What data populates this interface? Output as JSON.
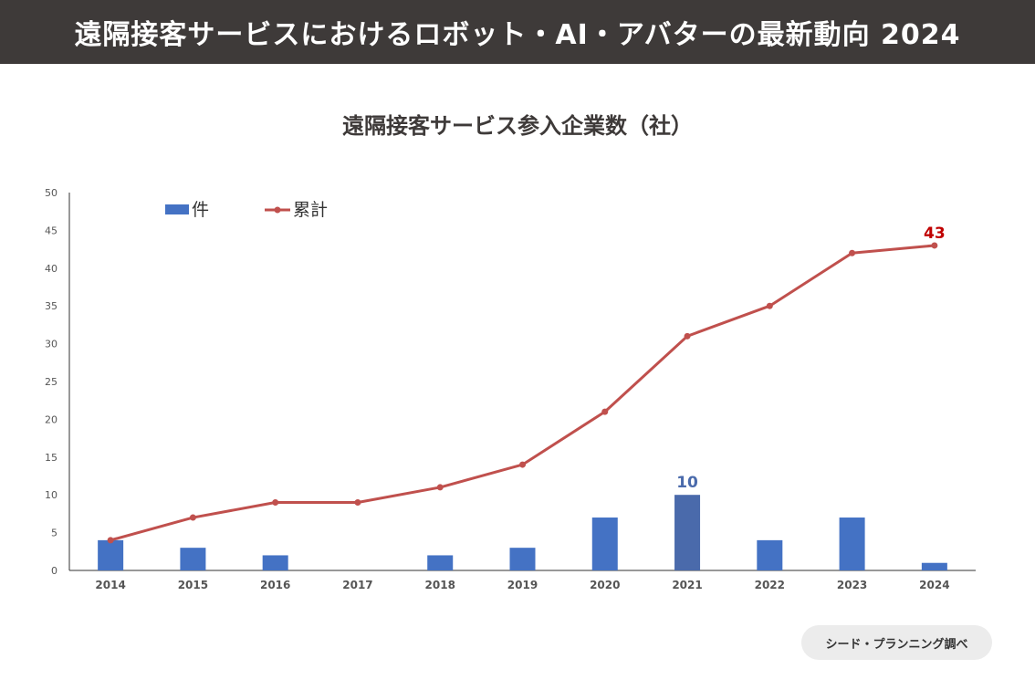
{
  "header": {
    "title": "遠隔接客サービスにおけるロボット・AI・アバターの最新動向 2024"
  },
  "source": {
    "label": "シード・プランニング調べ"
  },
  "colors": {
    "bar": "#4472c4",
    "bar_highlight": "#4a6aab",
    "line": "#c0504d",
    "bar_label": "#4a6aab",
    "line_label": "#c00000"
  },
  "chart_data": {
    "type": "bar",
    "title": "遠隔接客サービス参入企業数（社）",
    "categories": [
      "2014",
      "2015",
      "2016",
      "2017",
      "2018",
      "2019",
      "2020",
      "2021",
      "2022",
      "2023",
      "2024"
    ],
    "series": [
      {
        "name": "件",
        "type": "bar",
        "values": [
          4,
          3,
          2,
          0,
          2,
          3,
          7,
          10,
          4,
          7,
          1
        ]
      },
      {
        "name": "累計",
        "type": "line",
        "values": [
          4,
          7,
          9,
          9,
          11,
          14,
          21,
          31,
          35,
          42,
          43
        ]
      }
    ],
    "ylim": [
      0,
      50
    ],
    "yticks": [
      0,
      5,
      10,
      15,
      20,
      25,
      30,
      35,
      40,
      45,
      50
    ],
    "annotations": [
      {
        "series": "件",
        "category": "2021",
        "text": "10"
      },
      {
        "series": "累計",
        "category": "2024",
        "text": "43"
      }
    ],
    "legend": "top-left"
  }
}
